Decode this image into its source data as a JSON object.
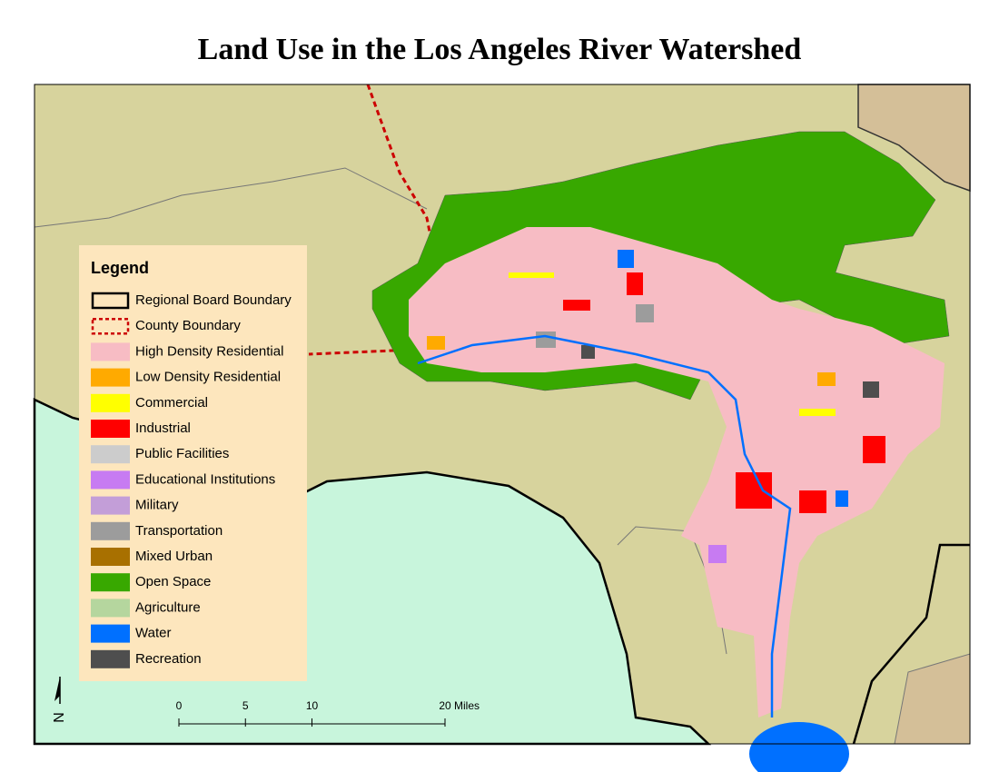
{
  "title": "Land Use in the Los Angeles River Watershed",
  "legend": {
    "title": "Legend",
    "items": [
      {
        "label": "Regional Board Boundary",
        "outline": "#000000",
        "style": "solid"
      },
      {
        "label": "County Boundary",
        "outline": "#cc0000",
        "style": "dashed"
      },
      {
        "label": "High Density Residential",
        "color": "#f7bcc4"
      },
      {
        "label": "Low Density Residential",
        "color": "#ffaa00"
      },
      {
        "label": "Commercial",
        "color": "#ffff00"
      },
      {
        "label": "Industrial",
        "color": "#ff0000"
      },
      {
        "label": "Public Facilities",
        "color": "#cccccc"
      },
      {
        "label": "Educational Institutions",
        "color": "#c77bf2"
      },
      {
        "label": "Military",
        "color": "#c39ed8"
      },
      {
        "label": "Transportation",
        "color": "#9c9c9c"
      },
      {
        "label": "Mixed Urban",
        "color": "#a87000"
      },
      {
        "label": "Open Space",
        "color": "#38a800"
      },
      {
        "label": "Agriculture",
        "color": "#b5d69e"
      },
      {
        "label": "Water",
        "color": "#0070ff"
      },
      {
        "label": "Recreation",
        "color": "#4e4e4e"
      }
    ]
  },
  "scale_bar": {
    "ticks": [
      0,
      5,
      10,
      20
    ],
    "unit": "Miles"
  },
  "north_arrow": {
    "label": "N"
  }
}
